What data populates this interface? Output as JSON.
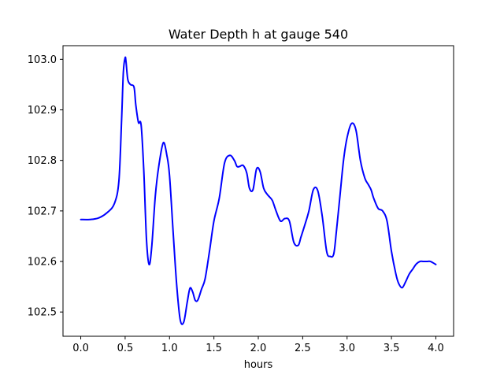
{
  "chart_data": {
    "type": "line",
    "title": "Water Depth h at gauge 540",
    "xlabel": "hours",
    "ylabel": "",
    "xlim": [
      -0.2,
      4.2
    ],
    "ylim": [
      102.452,
      103.027
    ],
    "xticks": [
      0.0,
      0.5,
      1.0,
      1.5,
      2.0,
      2.5,
      3.0,
      3.5,
      4.0
    ],
    "xtick_labels": [
      "0.0",
      "0.5",
      "1.0",
      "1.5",
      "2.0",
      "2.5",
      "3.0",
      "3.5",
      "4.0"
    ],
    "yticks": [
      102.5,
      102.6,
      102.7,
      102.8,
      102.9,
      103.0
    ],
    "ytick_labels": [
      "102.5",
      "102.6",
      "102.7",
      "102.8",
      "102.9",
      "103.0"
    ],
    "grid": false,
    "series": [
      {
        "color": "#0000ff",
        "x": [
          0.0,
          0.1,
          0.2,
          0.3,
          0.38,
          0.43,
          0.46,
          0.48,
          0.5,
          0.51,
          0.53,
          0.56,
          0.6,
          0.62,
          0.65,
          0.68,
          0.71,
          0.74,
          0.77,
          0.8,
          0.84,
          0.88,
          0.93,
          0.97,
          1.0,
          1.04,
          1.08,
          1.12,
          1.16,
          1.2,
          1.23,
          1.26,
          1.29,
          1.32,
          1.36,
          1.4,
          1.45,
          1.5,
          1.56,
          1.62,
          1.68,
          1.73,
          1.76,
          1.79,
          1.83,
          1.87,
          1.9,
          1.94,
          1.98,
          2.02,
          2.06,
          2.1,
          2.13,
          2.16,
          2.2,
          2.25,
          2.3,
          2.35,
          2.4,
          2.45,
          2.48,
          2.52,
          2.57,
          2.62,
          2.67,
          2.72,
          2.77,
          2.81,
          2.85,
          2.88,
          2.92,
          2.96,
          3.0,
          3.05,
          3.1,
          3.15,
          3.2,
          3.24,
          3.27,
          3.3,
          3.35,
          3.4,
          3.45,
          3.5,
          3.55,
          3.58,
          3.62,
          3.66,
          3.7,
          3.74,
          3.78,
          3.82,
          3.86,
          3.9,
          3.94,
          4.0
        ],
        "y": [
          102.683,
          102.683,
          102.686,
          102.697,
          102.715,
          102.76,
          102.88,
          102.975,
          103.003,
          102.995,
          102.96,
          102.95,
          102.945,
          102.91,
          102.875,
          102.87,
          102.78,
          102.645,
          102.594,
          102.63,
          102.73,
          102.79,
          102.835,
          102.81,
          102.77,
          102.66,
          102.555,
          102.485,
          102.48,
          102.52,
          102.547,
          102.54,
          102.523,
          102.524,
          102.545,
          102.565,
          102.62,
          102.68,
          102.725,
          102.795,
          102.81,
          102.8,
          102.788,
          102.788,
          102.79,
          102.775,
          102.745,
          102.742,
          102.783,
          102.778,
          102.745,
          102.733,
          102.727,
          102.72,
          102.7,
          102.68,
          102.685,
          102.68,
          102.638,
          102.632,
          102.648,
          102.67,
          102.7,
          102.742,
          102.74,
          102.69,
          102.62,
          102.61,
          102.615,
          102.66,
          102.73,
          102.8,
          102.845,
          102.873,
          102.86,
          102.8,
          102.765,
          102.752,
          102.742,
          102.725,
          102.705,
          102.7,
          102.68,
          102.62,
          102.575,
          102.557,
          102.548,
          102.56,
          102.575,
          102.585,
          102.595,
          102.6,
          102.6,
          102.6,
          102.6,
          102.594
        ]
      }
    ]
  }
}
